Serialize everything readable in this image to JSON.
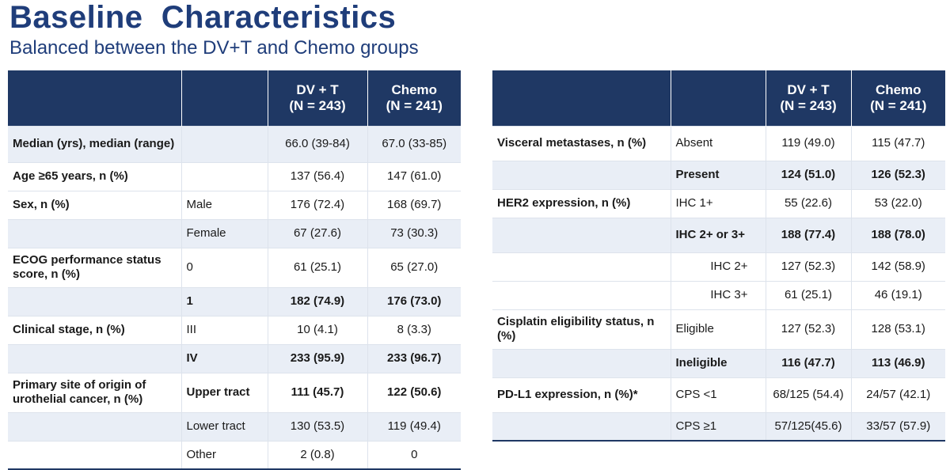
{
  "title": "Baseline  Characteristics",
  "subtitle": "Balanced between the DV+T and Chemo groups",
  "header": {
    "col1": "",
    "col2": "",
    "dvt_line1": "DV + T",
    "dvt_line2": "(N = 243)",
    "chemo_line1": "Chemo",
    "chemo_line2": "(N = 241)"
  },
  "left_rows": [
    {
      "label": "Median (yrs), median (range)",
      "sub": "",
      "dvt": "66.0 (39-84)",
      "chemo": "67.0 (33-85)",
      "bold": false
    },
    {
      "label": "Age ≥65 years, n (%)",
      "sub": "",
      "dvt": "137 (56.4)",
      "chemo": "147 (61.0)",
      "bold": false
    },
    {
      "label": "Sex, n (%)",
      "sub": "Male",
      "dvt": "176 (72.4)",
      "chemo": "168 (69.7)",
      "bold": false
    },
    {
      "label": "",
      "sub": "Female",
      "dvt": "67 (27.6)",
      "chemo": "73 (30.3)",
      "bold": false
    },
    {
      "label": "ECOG performance status score, n (%)",
      "sub": "0",
      "dvt": "61 (25.1)",
      "chemo": "65 (27.0)",
      "bold": false
    },
    {
      "label": "",
      "sub": "1",
      "dvt": "182 (74.9)",
      "chemo": "176 (73.0)",
      "bold": true
    },
    {
      "label": "Clinical stage, n (%)",
      "sub": "III",
      "dvt": "10 (4.1)",
      "chemo": "8 (3.3)",
      "bold": false
    },
    {
      "label": "",
      "sub": "IV",
      "dvt": "233 (95.9)",
      "chemo": "233 (96.7)",
      "bold": true
    },
    {
      "label": "Primary site of origin of urothelial cancer, n (%)",
      "sub": "Upper tract",
      "dvt": "111 (45.7)",
      "chemo": "122 (50.6)",
      "bold": true
    },
    {
      "label": "",
      "sub": "Lower tract",
      "dvt": "130 (53.5)",
      "chemo": "119 (49.4)",
      "bold": false
    },
    {
      "label": "",
      "sub": "Other",
      "dvt": "2 (0.8)",
      "chemo": "0",
      "bold": false
    }
  ],
  "right_rows": [
    {
      "label": "Visceral metastases, n (%)",
      "sub": "Absent",
      "dvt": "119 (49.0)",
      "chemo": "115 (47.7)",
      "bold": false
    },
    {
      "label": "",
      "sub": "Present",
      "dvt": "124 (51.0)",
      "chemo": "126 (52.3)",
      "bold": true
    },
    {
      "label": "HER2 expression, n (%)",
      "sub": "IHC 1+",
      "dvt": "55 (22.6)",
      "chemo": "53 (22.0)",
      "bold": false
    },
    {
      "label": "",
      "sub": "IHC 2+ or 3+",
      "dvt": "188 (77.4)",
      "chemo": "188 (78.0)",
      "bold": true
    },
    {
      "label": "",
      "sub": "IHC 2+",
      "dvt": "127 (52.3)",
      "chemo": "142 (58.9)",
      "bold": false,
      "indent": true
    },
    {
      "label": "",
      "sub": "IHC 3+",
      "dvt": "61 (25.1)",
      "chemo": "46 (19.1)",
      "bold": false,
      "indent": true
    },
    {
      "label": "Cisplatin eligibility status, n (%)",
      "sub": "Eligible",
      "dvt": "127 (52.3)",
      "chemo": "128 (53.1)",
      "bold": false
    },
    {
      "label": "",
      "sub": "Ineligible",
      "dvt": "116 (47.7)",
      "chemo": "113 (46.9)",
      "bold": true
    },
    {
      "label": "PD-L1 expression, n (%)*",
      "sub": "CPS <1",
      "dvt": "68/125 (54.4)",
      "chemo": "24/57 (42.1)",
      "bold": false
    },
    {
      "label": "",
      "sub": "CPS ≥1",
      "dvt": "57/125(45.6)",
      "chemo": "33/57 (57.9)",
      "bold": false
    }
  ]
}
